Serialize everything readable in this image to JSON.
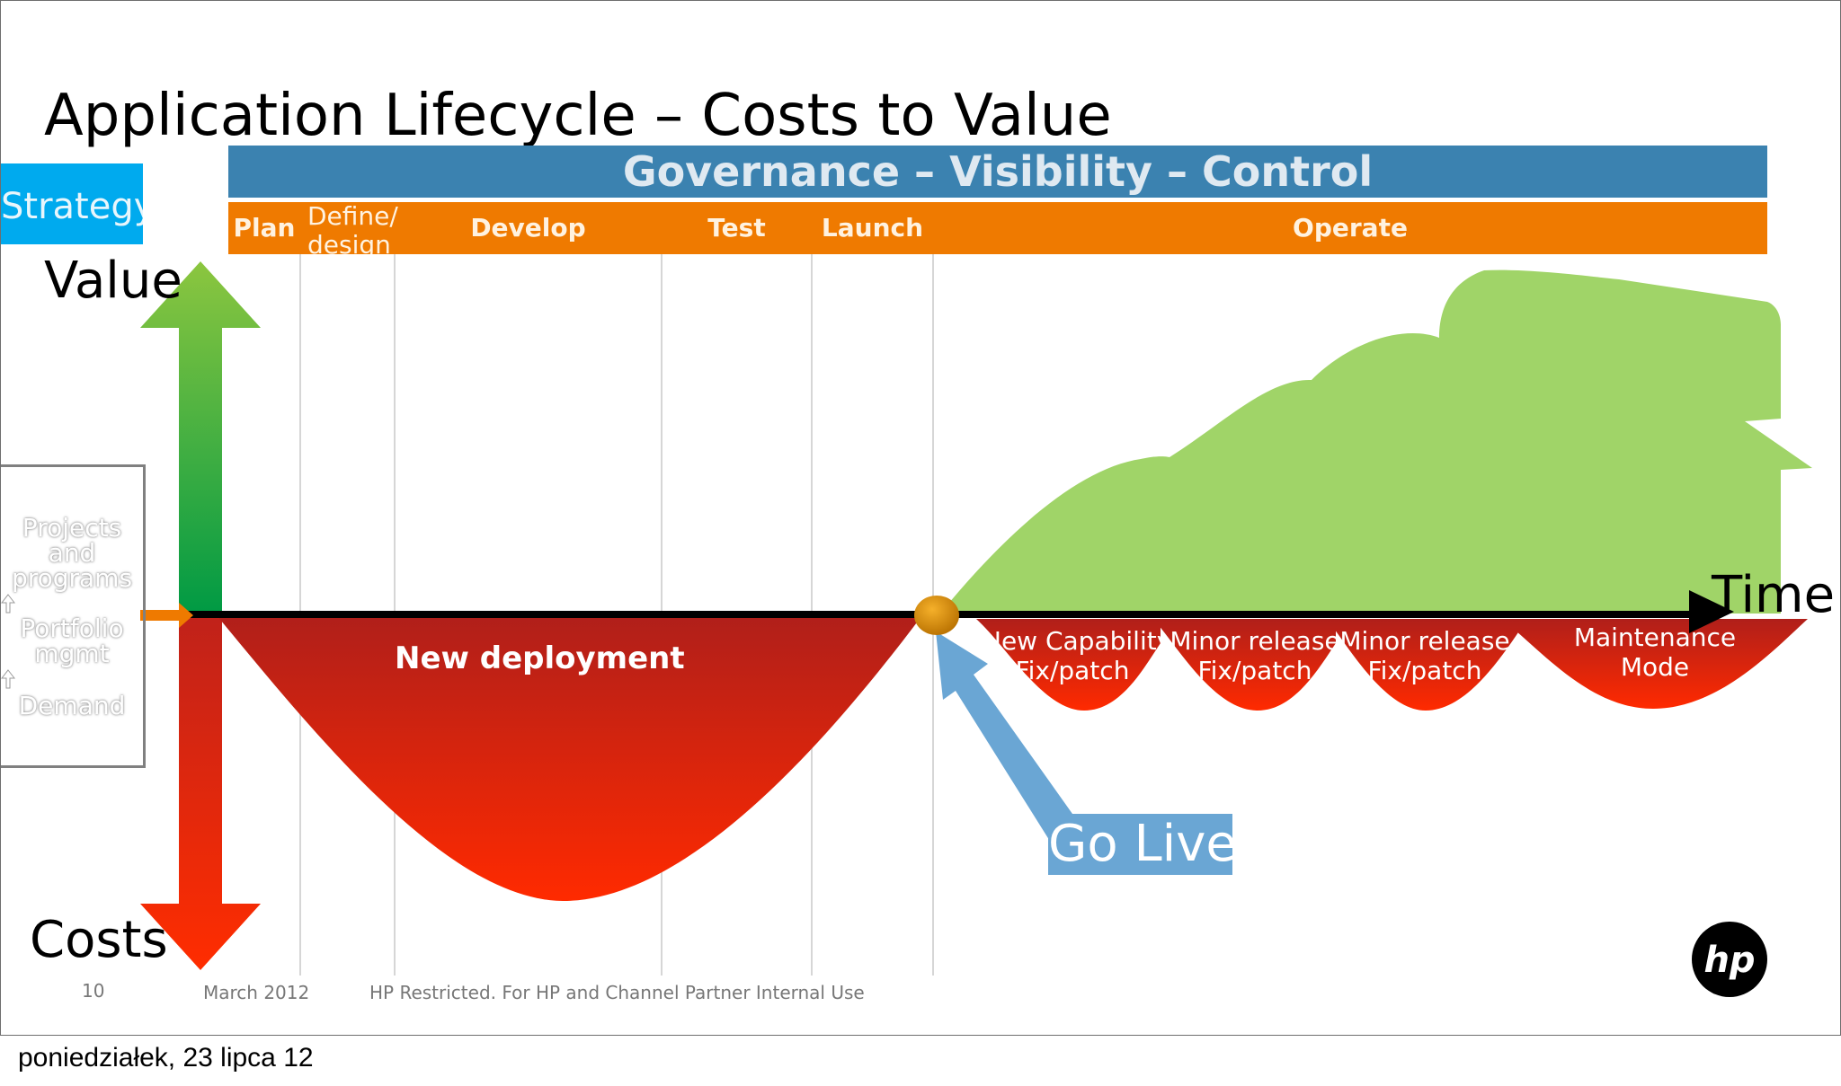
{
  "title": "Application Lifecycle – Costs to Value",
  "governance_bar": "Governance – Visibility – Control",
  "phases": [
    {
      "label": "Plan"
    },
    {
      "label": "Define/ design"
    },
    {
      "label": "Develop"
    },
    {
      "label": "Test"
    },
    {
      "label": "Launch"
    },
    {
      "label": "Operate"
    }
  ],
  "strategy_label": "Strategy",
  "value_axis_label": "Value",
  "costs_axis_label": "Costs",
  "time_axis_label": "Time",
  "left_box": {
    "line1": "Projects",
    "line2": "and",
    "line3": "programs",
    "line4": "Portfolio",
    "line5": "mgmt",
    "line6": "Demand"
  },
  "new_deployment_label": "New deployment",
  "cost_segments": [
    {
      "line1": "New Capability",
      "line2": "Fix/patch"
    },
    {
      "line1": "Minor release",
      "line2": "Fix/patch"
    },
    {
      "line1": "Minor release",
      "line2": "Fix/patch"
    },
    {
      "line1": "Maintenance",
      "line2": "Mode"
    }
  ],
  "go_live_label": "Go Live",
  "footer": {
    "page_number": "10",
    "date": "March 2012",
    "restriction": "HP Restricted. For HP and Channel Partner Internal Use"
  },
  "logo_text": "hp",
  "bottom_date": "poniedziałek, 23 lipca 12",
  "colors": {
    "governance_bar": "#3b82b0",
    "phase_bar": "#ef7a00",
    "strategy_box": "#00aaee",
    "value_area": "#a0d468",
    "cost_area": "#e8351e",
    "go_live": "#6aa6d4"
  }
}
